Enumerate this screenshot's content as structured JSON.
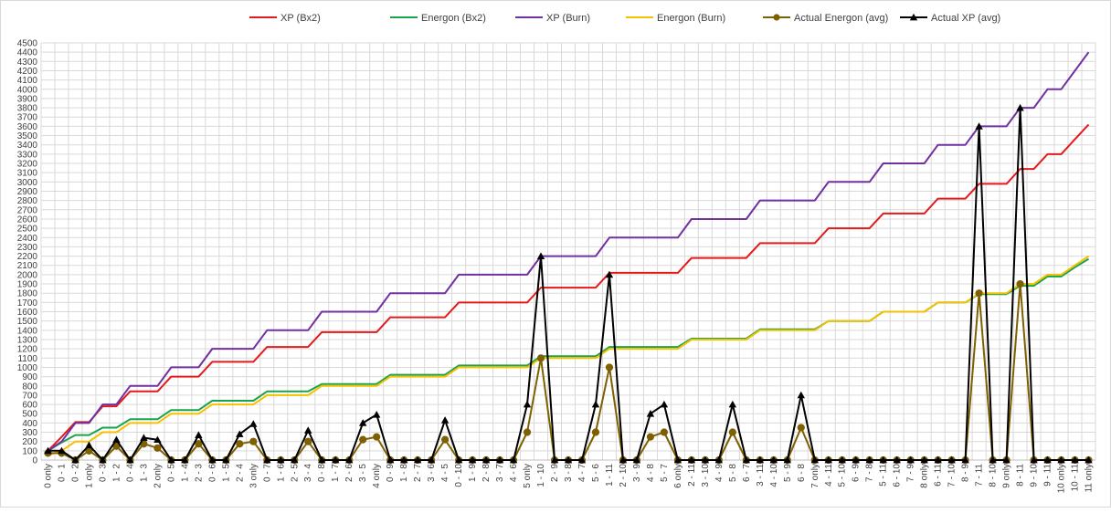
{
  "chart_data": {
    "type": "line",
    "title": "",
    "xlabel": "",
    "ylabel": "",
    "ylim": [
      0,
      4500
    ],
    "ytick_step": 100,
    "grid": true,
    "legend_position": "top",
    "categories": [
      "0 only",
      "0 - 1",
      "0 - 2",
      "1 only",
      "0 - 3",
      "1 - 2",
      "0 - 4",
      "1 - 3",
      "2 only",
      "0 - 5",
      "1 - 4",
      "2 - 3",
      "0 - 6",
      "1 - 5",
      "2 - 4",
      "3 only",
      "0 - 7",
      "1 - 6",
      "2 - 5",
      "3 - 4",
      "0 - 8",
      "1 - 7",
      "2 - 6",
      "3 - 5",
      "4 only",
      "0 - 9",
      "1 - 8",
      "2 - 7",
      "3 - 6",
      "4 - 5",
      "0 - 10",
      "1 - 9",
      "2 - 8",
      "3 - 7",
      "4 - 6",
      "5 only",
      "1 - 10",
      "2 - 9",
      "3 - 8",
      "4 - 7",
      "5 - 6",
      "1 - 11",
      "2 - 10",
      "3 - 9",
      "4 - 8",
      "5 - 7",
      "6 only",
      "2 - 11",
      "3 - 10",
      "4 - 9",
      "5 - 8",
      "6 - 7",
      "3 - 11",
      "4 - 10",
      "5 - 9",
      "6 - 8",
      "7 only",
      "4 - 11",
      "5 - 10",
      "6 - 9",
      "7 - 8",
      "5 - 11",
      "6 - 10",
      "7 - 9",
      "8 only",
      "6 - 11",
      "7 - 10",
      "8 - 9",
      "7 - 11",
      "8 - 10",
      "9 only",
      "8 - 11",
      "9 - 10",
      "9 - 11",
      "10 only",
      "10 - 11",
      "11 only"
    ],
    "series": [
      {
        "name": "XP (Bx2)",
        "color": "#e41a1c",
        "marker": "none",
        "width": 2,
        "values": [
          100,
          250,
          410,
          410,
          580,
          580,
          740,
          740,
          740,
          900,
          900,
          900,
          1060,
          1060,
          1060,
          1060,
          1220,
          1220,
          1220,
          1220,
          1380,
          1380,
          1380,
          1380,
          1380,
          1540,
          1540,
          1540,
          1540,
          1540,
          1700,
          1700,
          1700,
          1700,
          1700,
          1700,
          1860,
          1860,
          1860,
          1860,
          1860,
          2020,
          2020,
          2020,
          2020,
          2020,
          2020,
          2180,
          2180,
          2180,
          2180,
          2180,
          2340,
          2340,
          2340,
          2340,
          2340,
          2500,
          2500,
          2500,
          2500,
          2660,
          2660,
          2660,
          2660,
          2820,
          2820,
          2820,
          2980,
          2980,
          2980,
          3140,
          3140,
          3300,
          3300,
          3460,
          3620
        ]
      },
      {
        "name": "Energon (Bx2)",
        "color": "#1aa34a",
        "marker": "none",
        "width": 2,
        "values": [
          100,
          190,
          270,
          270,
          350,
          350,
          440,
          440,
          440,
          540,
          540,
          540,
          640,
          640,
          640,
          640,
          740,
          740,
          740,
          740,
          820,
          820,
          820,
          820,
          820,
          920,
          920,
          920,
          920,
          920,
          1020,
          1020,
          1020,
          1020,
          1020,
          1020,
          1120,
          1120,
          1120,
          1120,
          1120,
          1220,
          1220,
          1220,
          1220,
          1220,
          1220,
          1310,
          1310,
          1310,
          1310,
          1310,
          1410,
          1410,
          1410,
          1410,
          1410,
          1500,
          1500,
          1500,
          1500,
          1600,
          1600,
          1600,
          1600,
          1700,
          1700,
          1700,
          1790,
          1790,
          1790,
          1880,
          1880,
          1980,
          1980,
          2080,
          2170
        ]
      },
      {
        "name": "XP (Burn)",
        "color": "#7030a0",
        "marker": "none",
        "width": 2,
        "values": [
          100,
          200,
          400,
          400,
          600,
          600,
          800,
          800,
          800,
          1000,
          1000,
          1000,
          1200,
          1200,
          1200,
          1200,
          1400,
          1400,
          1400,
          1400,
          1600,
          1600,
          1600,
          1600,
          1600,
          1800,
          1800,
          1800,
          1800,
          1800,
          2000,
          2000,
          2000,
          2000,
          2000,
          2000,
          2200,
          2200,
          2200,
          2200,
          2200,
          2400,
          2400,
          2400,
          2400,
          2400,
          2400,
          2600,
          2600,
          2600,
          2600,
          2600,
          2800,
          2800,
          2800,
          2800,
          2800,
          3000,
          3000,
          3000,
          3000,
          3200,
          3200,
          3200,
          3200,
          3400,
          3400,
          3400,
          3600,
          3600,
          3600,
          3800,
          3800,
          4000,
          4000,
          4200,
          4400
        ]
      },
      {
        "name": "Energon (Burn)",
        "color": "#f5c000",
        "marker": "none",
        "width": 2,
        "values": [
          50,
          100,
          200,
          200,
          300,
          300,
          400,
          400,
          400,
          500,
          500,
          500,
          600,
          600,
          600,
          600,
          700,
          700,
          700,
          700,
          800,
          800,
          800,
          800,
          800,
          900,
          900,
          900,
          900,
          900,
          1000,
          1000,
          1000,
          1000,
          1000,
          1000,
          1100,
          1100,
          1100,
          1100,
          1100,
          1200,
          1200,
          1200,
          1200,
          1200,
          1200,
          1300,
          1300,
          1300,
          1300,
          1300,
          1400,
          1400,
          1400,
          1400,
          1400,
          1500,
          1500,
          1500,
          1500,
          1600,
          1600,
          1600,
          1600,
          1700,
          1700,
          1700,
          1800,
          1800,
          1800,
          1900,
          1900,
          2000,
          2000,
          2100,
          2200
        ]
      },
      {
        "name": "Actual Energon (avg)",
        "color": "#7f6000",
        "marker": "circle",
        "width": 2,
        "values": [
          75,
          75,
          0,
          100,
          0,
          150,
          0,
          175,
          130,
          0,
          0,
          175,
          0,
          0,
          175,
          200,
          0,
          0,
          0,
          200,
          0,
          0,
          0,
          220,
          250,
          0,
          0,
          0,
          0,
          220,
          0,
          0,
          0,
          0,
          0,
          300,
          1100,
          0,
          0,
          0,
          300,
          1000,
          0,
          0,
          250,
          300,
          0,
          0,
          0,
          0,
          300,
          0,
          0,
          0,
          0,
          350,
          0,
          0,
          0,
          0,
          0,
          0,
          0,
          0,
          0,
          0,
          0,
          0,
          1800,
          0,
          0,
          1900,
          0,
          0,
          0,
          0,
          0
        ]
      },
      {
        "name": "Actual XP (avg)",
        "color": "#000000",
        "marker": "triangle",
        "width": 2,
        "values": [
          100,
          100,
          0,
          160,
          0,
          220,
          0,
          240,
          220,
          0,
          0,
          270,
          0,
          0,
          280,
          390,
          0,
          0,
          0,
          320,
          0,
          0,
          0,
          400,
          490,
          0,
          0,
          0,
          0,
          430,
          0,
          0,
          0,
          0,
          0,
          600,
          2200,
          0,
          0,
          0,
          600,
          2000,
          0,
          0,
          500,
          600,
          0,
          0,
          0,
          0,
          600,
          0,
          0,
          0,
          0,
          700,
          0,
          0,
          0,
          0,
          0,
          0,
          0,
          0,
          0,
          0,
          0,
          0,
          3600,
          0,
          0,
          3800,
          0,
          0,
          0,
          0,
          0
        ]
      }
    ]
  }
}
